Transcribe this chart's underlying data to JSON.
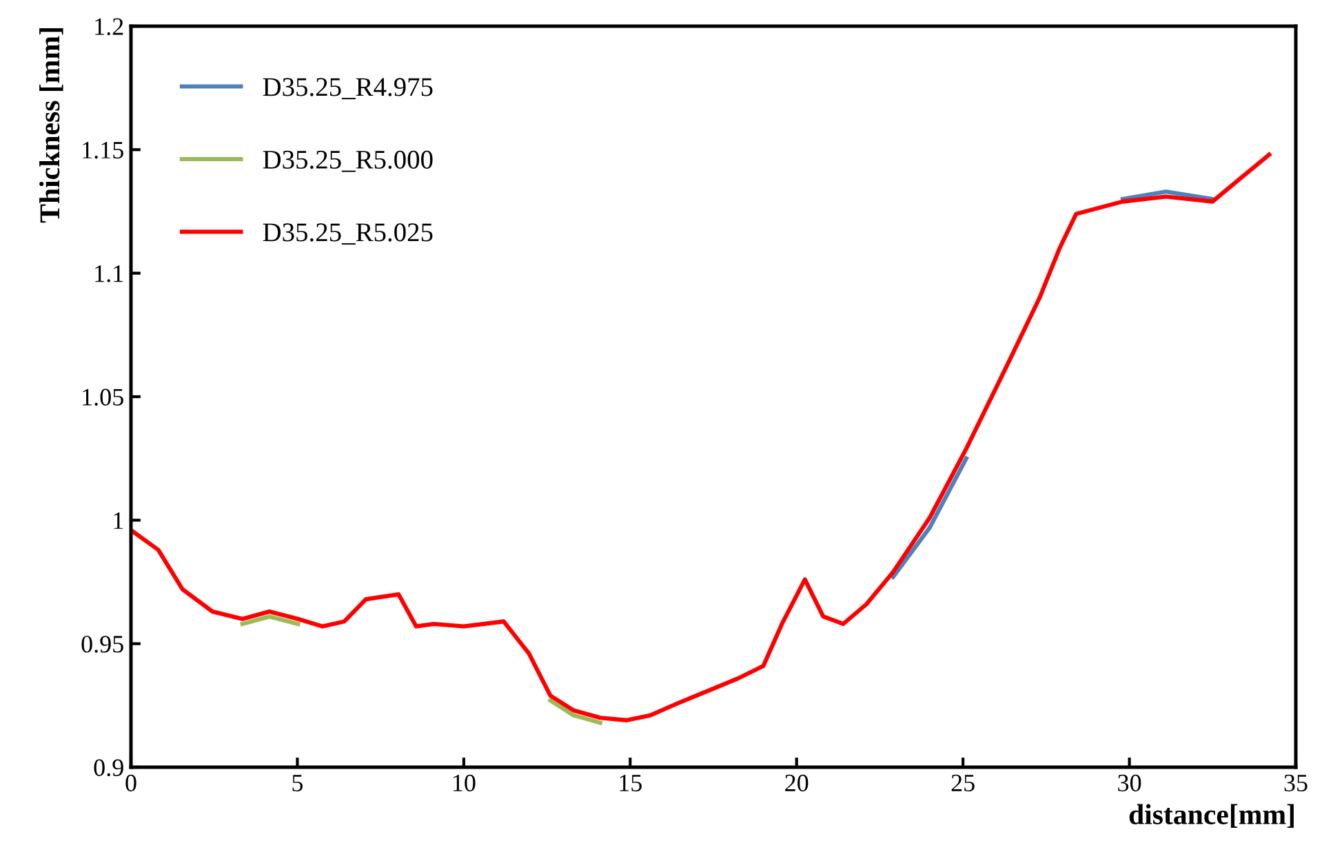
{
  "chart_data": {
    "type": "line",
    "xlabel": "distance[mm]",
    "ylabel": "Thickness [mm]",
    "x": [
      0,
      0.82,
      1.55,
      2.45,
      3.35,
      4.16,
      5.02,
      5.76,
      6.41,
      7.06,
      8.04,
      8.57,
      9.1,
      10.0,
      11.2,
      11.96,
      12.6,
      13.3,
      14.1,
      14.9,
      15.6,
      16.45,
      17.35,
      18.25,
      19.0,
      19.56,
      20.25,
      20.8,
      21.4,
      22.1,
      22.9,
      24.0,
      25.1,
      26.3,
      27.3,
      27.9,
      28.4,
      29.8,
      31.1,
      32.5,
      33.3,
      34.2
    ],
    "series": [
      {
        "name": "D35.25_R4.975",
        "color": "#4f81bd",
        "values": [
          null,
          null,
          null,
          null,
          null,
          null,
          null,
          null,
          null,
          null,
          null,
          null,
          null,
          null,
          null,
          null,
          null,
          null,
          null,
          null,
          null,
          null,
          null,
          null,
          null,
          null,
          null,
          null,
          null,
          null,
          0.977,
          0.997,
          1.025,
          null,
          null,
          null,
          null,
          1.13,
          1.133,
          1.13,
          null,
          null
        ]
      },
      {
        "name": "D35.25_R5.000",
        "color": "#9bbb59",
        "values": [
          null,
          null,
          null,
          null,
          0.958,
          0.961,
          0.958,
          null,
          null,
          null,
          null,
          null,
          null,
          null,
          null,
          null,
          0.927,
          0.921,
          0.918,
          null,
          null,
          null,
          null,
          null,
          null,
          null,
          null,
          null,
          null,
          null,
          null,
          null,
          null,
          null,
          null,
          null,
          null,
          null,
          null,
          null,
          null,
          null
        ]
      },
      {
        "name": "D35.25_R5.025",
        "color": "#ff0000",
        "values": [
          0.996,
          0.988,
          0.972,
          0.963,
          0.96,
          0.963,
          0.96,
          0.957,
          0.959,
          0.968,
          0.97,
          0.957,
          0.958,
          0.957,
          0.959,
          0.946,
          0.929,
          0.923,
          0.92,
          0.919,
          0.921,
          0.926,
          0.931,
          0.936,
          0.941,
          0.958,
          0.976,
          0.961,
          0.958,
          0.966,
          0.979,
          1.001,
          1.029,
          1.062,
          1.09,
          1.11,
          1.124,
          1.129,
          1.131,
          1.129,
          1.138,
          1.148
        ]
      }
    ],
    "xlim": [
      0,
      35
    ],
    "xticks": [
      0,
      5,
      10,
      15,
      20,
      25,
      30,
      35
    ],
    "ylim": [
      0.9,
      1.2
    ],
    "yticks": [
      0.9,
      0.95,
      1,
      1.05,
      1.1,
      1.15,
      1.2
    ],
    "grid": false,
    "legend": "top left",
    "marker": "none",
    "line_style": "solid"
  }
}
